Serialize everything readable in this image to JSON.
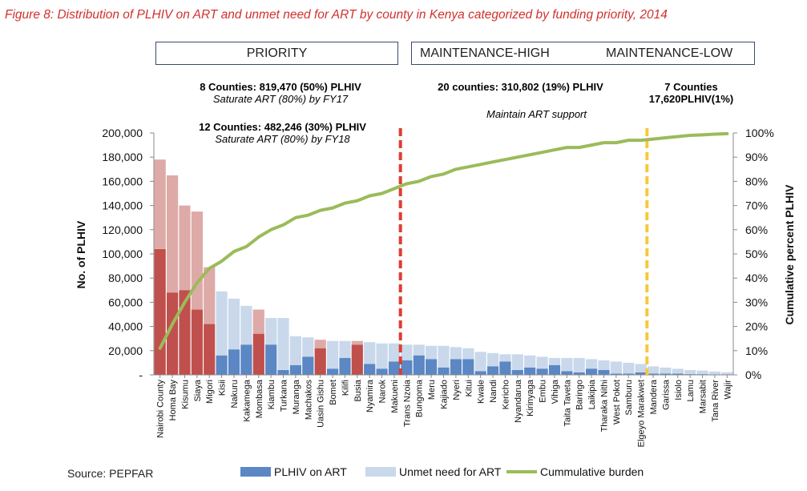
{
  "figure_title": "Figure 8: Distribution of PLHIV on ART and unmet need for ART by county in Kenya categorized by funding priority, 2014",
  "header_boxes": {
    "priority": "PRIORITY",
    "maintenance_high": "MAINTENANCE-HIGH",
    "maintenance_low": "MAINTENANCE-LOW"
  },
  "annotations": {
    "group1_bold": "8 Counties: 819,470 (50%) PLHIV",
    "group1_italic": "Saturate ART (80%) by FY17",
    "group2_bold": "12 Counties: 482,246 (30%) PLHIV",
    "group2_italic": "Saturate  ART (80%) by FY18",
    "group3_bold": "20 counties: 310,802 (19%) PLHIV",
    "group3_italic": "Maintain ART support",
    "group4_line1": "7 Counties",
    "group4_line2": "17,620PLHIV(1%)"
  },
  "source": "Source: PEPFAR",
  "legend": {
    "on_art": "PLHIV on ART",
    "unmet": "Unmet need for ART",
    "cumulative": "Cummulative  burden"
  },
  "colors": {
    "title_red": "#d0312d",
    "on_art": "#5b87c4",
    "unmet": "#c9d8eb",
    "priority_on_art": "#c0504d",
    "priority_unmet": "#deaaa8",
    "cumulative": "#9bbb59",
    "divider_red": "#e03c31",
    "divider_yellow": "#f7c83a"
  },
  "chart_data": {
    "type": "bar",
    "ylabel": "No. of PLHIV",
    "y2label": "Cumulative percent  PLHIV",
    "ylim": [
      0,
      200000
    ],
    "y_ticks": [
      "-",
      "20,000",
      "40,000",
      "60,000",
      "80,000",
      "100,000",
      "120,000",
      "140,000",
      "160,000",
      "180,000",
      "200,000"
    ],
    "y2lim": [
      0,
      100
    ],
    "y2_ticks": [
      "0%",
      "10%",
      "20%",
      "30%",
      "40%",
      "50%",
      "60%",
      "70%",
      "80%",
      "90%",
      "100%"
    ],
    "categories": [
      "Nairobi County",
      "Homa Bay",
      "Kisumu",
      "Siaya",
      "Migori",
      "Kisii",
      "Nakuru",
      "Kakamega",
      "Mombasa",
      "Kiambu",
      "Turkana",
      "Muranga",
      "Machakos",
      "Uasin Gishu",
      "Bomet",
      "Kilifi",
      "Busia",
      "Nyamira",
      "Narok",
      "Makueni",
      "Trans Nzoia",
      "Bungoma",
      "Meru",
      "Kajiado",
      "Nyeri",
      "Kitui",
      "Kwale",
      "Nandi",
      "Kericho",
      "Nyandarua",
      "Kirinyaga",
      "Embu",
      "Vihiga",
      "Taita Taveta",
      "Baringo",
      "Laikipia",
      "Tharaka Nithi",
      "West Pokot",
      "Samburu",
      "Elgeyo Marakwet",
      "Mandera",
      "Garissa",
      "Isiolo",
      "Lamu",
      "Marsabit",
      "Tana River",
      "Wajir"
    ],
    "highlighted": [
      true,
      true,
      true,
      true,
      true,
      false,
      false,
      false,
      true,
      false,
      false,
      false,
      false,
      true,
      false,
      false,
      true,
      false,
      false,
      false,
      false,
      false,
      false,
      false,
      false,
      false,
      false,
      false,
      false,
      false,
      false,
      false,
      false,
      false,
      false,
      false,
      false,
      false,
      false,
      false,
      false,
      false,
      false,
      false,
      false,
      false,
      false
    ],
    "series": [
      {
        "name": "PLHIV on ART",
        "values": [
          104000,
          68000,
          70000,
          54000,
          42000,
          16000,
          21000,
          25000,
          34000,
          25000,
          4000,
          8000,
          15000,
          22000,
          5000,
          14000,
          25000,
          9000,
          5000,
          11000,
          12000,
          16000,
          13000,
          6000,
          13000,
          13000,
          3000,
          7000,
          11000,
          4000,
          6000,
          5000,
          8000,
          3000,
          2000,
          5000,
          4000,
          1000,
          1000,
          2000,
          1000,
          1000,
          1000,
          500,
          500,
          300,
          200
        ]
      },
      {
        "name": "Unmet need for ART",
        "values": [
          74000,
          97000,
          70000,
          81000,
          47000,
          53000,
          42000,
          32000,
          20000,
          22000,
          43000,
          24000,
          16000,
          7000,
          23000,
          14000,
          3000,
          18000,
          21000,
          15000,
          13000,
          9000,
          11000,
          18000,
          10000,
          9000,
          16000,
          11000,
          6000,
          13000,
          10000,
          10000,
          6000,
          11000,
          12000,
          8000,
          8000,
          10000,
          9000,
          7000,
          6000,
          5000,
          4000,
          3500,
          3000,
          2500,
          2000
        ]
      },
      {
        "name": "Cummulative  burden",
        "axis": "right",
        "values": [
          11,
          21,
          30,
          38,
          44,
          47,
          51,
          53,
          57,
          60,
          62,
          65,
          66,
          68,
          69,
          71,
          72,
          74,
          75,
          77,
          79,
          80,
          82,
          83,
          85,
          86,
          87,
          88,
          89,
          90,
          91,
          92,
          93,
          94,
          94,
          95,
          96,
          96,
          97,
          97,
          97.5,
          98,
          98.5,
          99,
          99.2,
          99.5,
          99.7
        ]
      }
    ],
    "dividers": [
      {
        "after_index": 19,
        "color": "red"
      },
      {
        "after_index": 39,
        "color": "yellow"
      }
    ],
    "grid": false,
    "legend_position": "bottom"
  }
}
